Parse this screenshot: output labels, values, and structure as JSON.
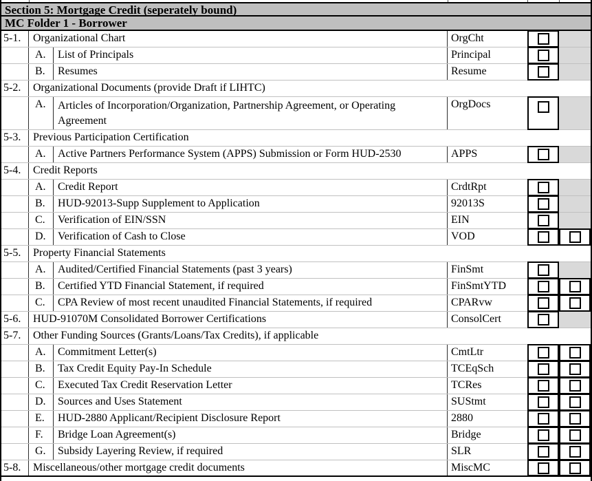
{
  "page": {
    "section_title": "Section 5: Mortgage Credit (seperately bound)",
    "folder_title": "MC Folder 1 - Borrower"
  },
  "colors": {
    "header_bg": "#bfbfbf",
    "shaded_cell": "#d9d9d9",
    "grid_vertical": "#2b2b2b",
    "grid_horizontal": "#c0c0c0",
    "border": "#000000"
  },
  "checkbox_meta": {
    "style": "empty-square",
    "all_unchecked": true
  },
  "rows": [
    {
      "type": "item",
      "num": "5-1.",
      "letter": "",
      "label": "Organizational Chart",
      "code": "OrgCht",
      "boxes": 1,
      "checkbox_states": [
        false
      ],
      "tall": false
    },
    {
      "type": "item",
      "num": "",
      "letter": "A.",
      "label": "List of Principals",
      "code": "Principal",
      "boxes": 1,
      "checkbox_states": [
        false
      ],
      "tall": false
    },
    {
      "type": "item",
      "num": "",
      "letter": "B.",
      "label": "Resumes",
      "code": "Resume",
      "boxes": 1,
      "checkbox_states": [
        false
      ],
      "tall": false
    },
    {
      "type": "section",
      "num": "5-2.",
      "label": "Organizational Documents (provide Draft if LIHTC)"
    },
    {
      "type": "item",
      "num": "",
      "letter": "A.",
      "label": "Articles of Incorporation/Organization, Partnership Agreement, or Operating Agreement",
      "code": "OrgDocs",
      "boxes": 1,
      "checkbox_states": [
        false
      ],
      "tall": true
    },
    {
      "type": "section",
      "num": "5-3.",
      "label": "Previous Participation Certification"
    },
    {
      "type": "item",
      "num": "",
      "letter": "A.",
      "label": "Active Partners Performance System (APPS) Submission or Form HUD-2530",
      "code": "APPS",
      "boxes": 1,
      "checkbox_states": [
        false
      ],
      "tall": false
    },
    {
      "type": "section",
      "num": "5-4.",
      "label": "Credit Reports"
    },
    {
      "type": "item",
      "num": "",
      "letter": "A.",
      "label": "Credit Report",
      "code": "CrdtRpt",
      "boxes": 1,
      "checkbox_states": [
        false
      ],
      "tall": false
    },
    {
      "type": "item",
      "num": "",
      "letter": "B.",
      "label": "HUD-92013-Supp Supplement to Application",
      "code": "92013S",
      "boxes": 1,
      "checkbox_states": [
        false
      ],
      "tall": false
    },
    {
      "type": "item",
      "num": "",
      "letter": "C.",
      "label": "Verification of EIN/SSN",
      "code": "EIN",
      "boxes": 1,
      "checkbox_states": [
        false
      ],
      "tall": false
    },
    {
      "type": "item",
      "num": "",
      "letter": "D.",
      "label": "Verification of Cash to Close",
      "code": "VOD",
      "boxes": 2,
      "checkbox_states": [
        false,
        false
      ],
      "tall": false
    },
    {
      "type": "section",
      "num": "5-5.",
      "label": "Property Financial Statements"
    },
    {
      "type": "item",
      "num": "",
      "letter": "A.",
      "label": "Audited/Certified Financial Statements (past 3 years)",
      "code": "FinSmt",
      "boxes": 1,
      "checkbox_states": [
        false
      ],
      "tall": false
    },
    {
      "type": "item",
      "num": "",
      "letter": "B.",
      "label": "Certified YTD Financial Statement, if required",
      "code": "FinSmtYTD",
      "boxes": 2,
      "checkbox_states": [
        false,
        false
      ],
      "tall": false
    },
    {
      "type": "item",
      "num": "",
      "letter": "C.",
      "label": "CPA Review of most recent unaudited Financial Statements, if required",
      "code": "CPARvw",
      "boxes": 2,
      "checkbox_states": [
        false,
        false
      ],
      "tall": false
    },
    {
      "type": "item",
      "num": "5-6.",
      "letter": "",
      "label": "HUD-91070M Consolidated Borrower Certifications",
      "code": "ConsolCert",
      "boxes": 1,
      "checkbox_states": [
        false
      ],
      "tall": false
    },
    {
      "type": "section",
      "num": "5-7.",
      "label": "Other Funding Sources (Grants/Loans/Tax Credits), if applicable"
    },
    {
      "type": "item",
      "num": "",
      "letter": "A.",
      "label": "Commitment Letter(s)",
      "code": "CmtLtr",
      "boxes": 2,
      "checkbox_states": [
        false,
        false
      ],
      "tall": false
    },
    {
      "type": "item",
      "num": "",
      "letter": "B.",
      "label": "Tax Credit Equity Pay-In Schedule",
      "code": "TCEqSch",
      "boxes": 2,
      "checkbox_states": [
        false,
        false
      ],
      "tall": false
    },
    {
      "type": "item",
      "num": "",
      "letter": "C.",
      "label": "Executed Tax Credit Reservation Letter",
      "code": "TCRes",
      "boxes": 2,
      "checkbox_states": [
        false,
        false
      ],
      "tall": false
    },
    {
      "type": "item",
      "num": "",
      "letter": "D.",
      "label": "Sources and Uses Statement",
      "code": "SUStmt",
      "boxes": 2,
      "checkbox_states": [
        false,
        false
      ],
      "tall": false
    },
    {
      "type": "item",
      "num": "",
      "letter": "E.",
      "label": "HUD-2880 Applicant/Recipient Disclosure Report",
      "code": "2880",
      "boxes": 2,
      "checkbox_states": [
        false,
        false
      ],
      "tall": false
    },
    {
      "type": "item",
      "num": "",
      "letter": "F.",
      "label": "Bridge Loan Agreement(s)",
      "code": "Bridge",
      "boxes": 2,
      "checkbox_states": [
        false,
        false
      ],
      "tall": false
    },
    {
      "type": "item",
      "num": "",
      "letter": "G.",
      "label": "Subsidy Layering Review, if required",
      "code": "SLR",
      "boxes": 2,
      "checkbox_states": [
        false,
        false
      ],
      "tall": false
    },
    {
      "type": "item",
      "num": "5-8.",
      "letter": "",
      "label": "Miscellaneous/other mortgage credit documents",
      "code": "MiscMC",
      "boxes": 2,
      "checkbox_states": [
        false,
        false
      ],
      "tall": false
    }
  ]
}
